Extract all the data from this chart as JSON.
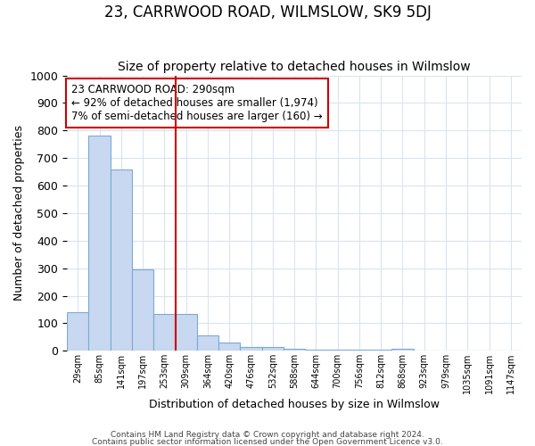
{
  "title": "23, CARRWOOD ROAD, WILMSLOW, SK9 5DJ",
  "subtitle": "Size of property relative to detached houses in Wilmslow",
  "xlabel": "Distribution of detached houses by size in Wilmslow",
  "ylabel": "Number of detached properties",
  "categories": [
    "29sqm",
    "85sqm",
    "141sqm",
    "197sqm",
    "253sqm",
    "309sqm",
    "364sqm",
    "420sqm",
    "476sqm",
    "532sqm",
    "588sqm",
    "644sqm",
    "700sqm",
    "756sqm",
    "812sqm",
    "868sqm",
    "923sqm",
    "979sqm",
    "1035sqm",
    "1091sqm",
    "1147sqm"
  ],
  "values": [
    140,
    780,
    660,
    295,
    133,
    133,
    55,
    30,
    15,
    15,
    8,
    5,
    5,
    5,
    5,
    8,
    0,
    0,
    0,
    0,
    0
  ],
  "bar_color": "#c8d8f0",
  "bar_edge_color": "#7aaad4",
  "red_line_x": 4.5,
  "ylim": [
    0,
    1000
  ],
  "yticks": [
    0,
    100,
    200,
    300,
    400,
    500,
    600,
    700,
    800,
    900,
    1000
  ],
  "annotation_line1": "23 CARRWOOD ROAD: 290sqm",
  "annotation_line2": "← 92% of detached houses are smaller (1,974)",
  "annotation_line3": "7% of semi-detached houses are larger (160) →",
  "annotation_box_color": "#cc0000",
  "footer1": "Contains HM Land Registry data © Crown copyright and database right 2024.",
  "footer2": "Contains public sector information licensed under the Open Government Licence v3.0.",
  "background_color": "#ffffff",
  "grid_color": "#d8e4f0",
  "title_fontsize": 12,
  "subtitle_fontsize": 10,
  "title_fontweight": "normal"
}
